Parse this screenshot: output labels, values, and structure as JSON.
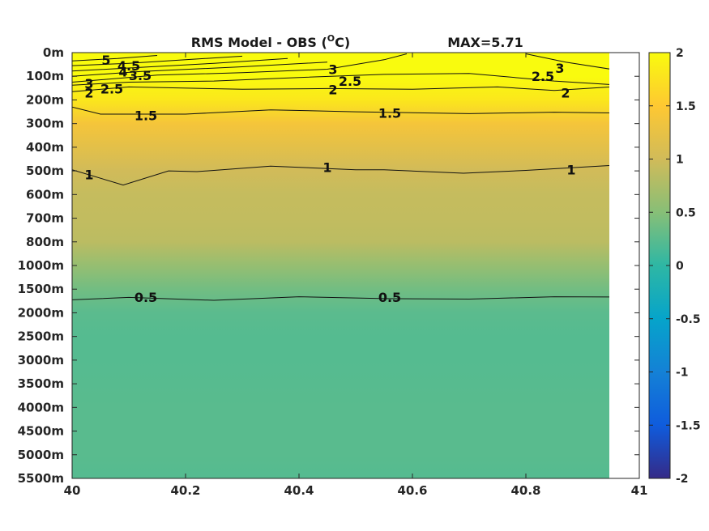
{
  "chart_data": {
    "type": "heatmap",
    "title": "RMS Model - OBS (",
    "title_superscript": "O",
    "title_unit_suffix": "C)",
    "max_label": "MAX=5.71",
    "x": {
      "range": [
        40,
        41
      ],
      "data_extent": [
        40,
        40.95
      ],
      "tick_values": [
        40,
        40.2,
        40.4,
        40.6,
        40.8,
        41
      ],
      "tick_labels": [
        "40",
        "40.2",
        "40.4",
        "40.6",
        "40.8",
        "41"
      ]
    },
    "y": {
      "direction": "down",
      "levels": [
        "0m",
        "100m",
        "200m",
        "300m",
        "400m",
        "500m",
        "600m",
        "700m",
        "800m",
        "1000m",
        "1500m",
        "2000m",
        "2500m",
        "3000m",
        "3500m",
        "4000m",
        "4500m",
        "5000m",
        "5500m"
      ]
    },
    "colorbar": {
      "range": [
        -2,
        2
      ],
      "tick_values": [
        2,
        1.5,
        1,
        0.5,
        0,
        -0.5,
        -1,
        -1.5,
        -2
      ],
      "tick_labels": [
        "2",
        "1.5",
        "1",
        "0.5",
        "0",
        "-0.5",
        "-1",
        "-1.5",
        "-2"
      ],
      "colormap": "parula",
      "colors": [
        "#352a87",
        "#0f5cdd",
        "#1481d6",
        "#06a4ca",
        "#2eb7a4",
        "#87bf77",
        "#d1bb59",
        "#fec832",
        "#f9fb0e"
      ]
    },
    "field": {
      "depth_profile": [
        {
          "level": "0m",
          "value": 3.0
        },
        {
          "level": "100m",
          "value": 2.4
        },
        {
          "level": "200m",
          "value": 1.8
        },
        {
          "level": "300m",
          "value": 1.4
        },
        {
          "level": "400m",
          "value": 1.2
        },
        {
          "level": "500m",
          "value": 1.0
        },
        {
          "level": "600m",
          "value": 0.92
        },
        {
          "level": "700m",
          "value": 0.9
        },
        {
          "level": "800m",
          "value": 0.85
        },
        {
          "level": "1000m",
          "value": 0.6
        },
        {
          "level": "1500m",
          "value": 0.38
        },
        {
          "level": "2000m",
          "value": 0.25
        },
        {
          "level": "2500m",
          "value": 0.22
        },
        {
          "level": "3000m",
          "value": 0.22
        },
        {
          "level": "3500m",
          "value": 0.23
        },
        {
          "level": "4000m",
          "value": 0.24
        },
        {
          "level": "4500m",
          "value": 0.24
        },
        {
          "level": "5000m",
          "value": 0.24
        },
        {
          "level": "5500m",
          "value": 0.22
        }
      ]
    },
    "contours": [
      {
        "value": 0.5,
        "label": "0.5",
        "points": [
          [
            40,
            10.45
          ],
          [
            40.1,
            10.35
          ],
          [
            40.25,
            10.47
          ],
          [
            40.4,
            10.32
          ],
          [
            40.55,
            10.4
          ],
          [
            40.7,
            10.42
          ],
          [
            40.85,
            10.32
          ],
          [
            40.95,
            10.33
          ]
        ],
        "labels_at": [
          [
            40.13,
            10.33
          ],
          [
            40.56,
            10.33
          ]
        ]
      },
      {
        "value": 1,
        "label": "1",
        "points": [
          [
            40,
            4.95
          ],
          [
            40.09,
            5.6
          ],
          [
            40.17,
            5.0
          ],
          [
            40.22,
            5.03
          ],
          [
            40.35,
            4.8
          ],
          [
            40.5,
            4.95
          ],
          [
            40.55,
            4.95
          ],
          [
            40.69,
            5.1
          ],
          [
            40.8,
            4.98
          ],
          [
            40.95,
            4.77
          ]
        ],
        "labels_at": [
          [
            40.03,
            5.15
          ],
          [
            40.45,
            4.85
          ],
          [
            40.88,
            4.95
          ]
        ]
      },
      {
        "value": 1.5,
        "label": "1.5",
        "points": [
          [
            40,
            2.3
          ],
          [
            40.05,
            2.6
          ],
          [
            40.2,
            2.6
          ],
          [
            40.35,
            2.42
          ],
          [
            40.5,
            2.5
          ],
          [
            40.7,
            2.58
          ],
          [
            40.85,
            2.52
          ],
          [
            40.95,
            2.55
          ]
        ],
        "labels_at": [
          [
            40.13,
            2.65
          ],
          [
            40.56,
            2.55
          ]
        ]
      },
      {
        "value": 2,
        "label": "2",
        "points": [
          [
            40,
            1.65
          ],
          [
            40.1,
            1.45
          ],
          [
            40.3,
            1.55
          ],
          [
            40.45,
            1.52
          ],
          [
            40.6,
            1.55
          ],
          [
            40.75,
            1.45
          ],
          [
            40.85,
            1.6
          ],
          [
            40.95,
            1.45
          ]
        ],
        "labels_at": [
          [
            40.03,
            1.7
          ],
          [
            40.46,
            1.55
          ],
          [
            40.87,
            1.7
          ]
        ]
      },
      {
        "value": 2.5,
        "label": "2.5",
        "points": [
          [
            40,
            1.38
          ],
          [
            40.1,
            1.25
          ],
          [
            40.25,
            1.2
          ],
          [
            40.4,
            1.05
          ],
          [
            40.55,
            0.92
          ],
          [
            40.7,
            0.88
          ],
          [
            40.85,
            1.2
          ],
          [
            40.95,
            1.35
          ]
        ],
        "labels_at": [
          [
            40.07,
            1.52
          ],
          [
            40.49,
            1.2
          ],
          [
            40.83,
            1.0
          ]
        ]
      },
      {
        "value": 3,
        "label": "3",
        "points": [
          [
            40,
            1.25
          ],
          [
            40.15,
            0.95
          ],
          [
            40.3,
            0.85
          ],
          [
            40.45,
            0.7
          ],
          [
            40.55,
            0.3
          ],
          [
            40.59,
            0.05
          ]
        ],
        "labels_at": [
          [
            40.03,
            1.3
          ],
          [
            40.46,
            0.7
          ],
          [
            40.86,
            0.65
          ]
        ]
      },
      {
        "value": 3,
        "label": "",
        "points": [
          [
            40.8,
            0.05
          ],
          [
            40.87,
            0.4
          ],
          [
            40.95,
            0.7
          ]
        ],
        "labels_at": []
      },
      {
        "value": 3.5,
        "label": "3.5",
        "points": [
          [
            40,
            1.0
          ],
          [
            40.12,
            0.8
          ],
          [
            40.3,
            0.6
          ],
          [
            40.45,
            0.4
          ]
        ],
        "labels_at": [
          [
            40.12,
            0.95
          ]
        ]
      },
      {
        "value": 4,
        "label": "4",
        "points": [
          [
            40,
            0.78
          ],
          [
            40.1,
            0.65
          ],
          [
            40.25,
            0.45
          ],
          [
            40.38,
            0.25
          ]
        ],
        "labels_at": [
          [
            40.09,
            0.8
          ]
        ]
      },
      {
        "value": 4.5,
        "label": "4.5",
        "points": [
          [
            40,
            0.55
          ],
          [
            40.1,
            0.45
          ],
          [
            40.2,
            0.3
          ],
          [
            40.3,
            0.15
          ]
        ],
        "labels_at": [
          [
            40.1,
            0.55
          ]
        ]
      },
      {
        "value": 5,
        "label": "5",
        "points": [
          [
            40,
            0.35
          ],
          [
            40.08,
            0.25
          ],
          [
            40.15,
            0.12
          ]
        ],
        "labels_at": [
          [
            40.06,
            0.3
          ]
        ]
      }
    ]
  }
}
